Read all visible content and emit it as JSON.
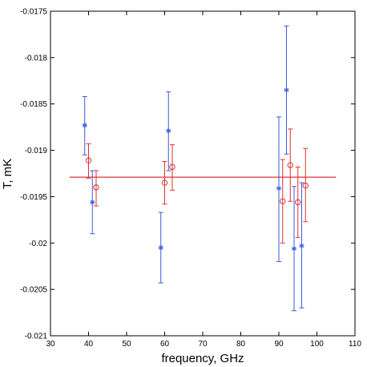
{
  "chart_data": {
    "type": "scatter",
    "title": "",
    "xlabel": "frequency, GHz",
    "ylabel": "T, mK",
    "xlim": [
      30,
      110
    ],
    "ylim": [
      -0.021,
      -0.0175
    ],
    "xticks": [
      30,
      40,
      50,
      60,
      70,
      80,
      90,
      100,
      110
    ],
    "yticks": [
      -0.021,
      -0.0205,
      -0.02,
      -0.0195,
      -0.019,
      -0.0185,
      -0.018,
      -0.0175
    ],
    "xtick_labels": [
      "30",
      "40",
      "50",
      "60",
      "70",
      "80",
      "90",
      "100",
      "110"
    ],
    "ytick_labels": [
      "-0.021",
      "-0.0205",
      "-0.02",
      "-0.0195",
      "-0.019",
      "-0.0185",
      "-0.018",
      "-0.0175"
    ],
    "grid": false,
    "legend": "none",
    "series": [
      {
        "marker": "asterisk",
        "color": "#3b5bdb",
        "points": [
          {
            "x": 39,
            "y": -0.01873,
            "lo": -0.01905,
            "hi": -0.01842
          },
          {
            "x": 41,
            "y": -0.01956,
            "lo": -0.0199,
            "hi": -0.01922
          },
          {
            "x": 59,
            "y": -0.02005,
            "lo": -0.02043,
            "hi": -0.01967
          },
          {
            "x": 61,
            "y": -0.01879,
            "lo": -0.01922,
            "hi": -0.01837
          },
          {
            "x": 90,
            "y": -0.01941,
            "lo": -0.0202,
            "hi": -0.01864
          },
          {
            "x": 92,
            "y": -0.01835,
            "lo": -0.01904,
            "hi": -0.01766
          },
          {
            "x": 94,
            "y": -0.02006,
            "lo": -0.02073,
            "hi": -0.01939
          },
          {
            "x": 96,
            "y": -0.02003,
            "lo": -0.0207,
            "hi": -0.01935
          }
        ]
      },
      {
        "marker": "circle",
        "color": "#e03131",
        "points": [
          {
            "x": 40,
            "y": -0.01911,
            "lo": -0.0193,
            "hi": -0.01893
          },
          {
            "x": 42,
            "y": -0.0194,
            "lo": -0.0196,
            "hi": -0.01922
          },
          {
            "x": 60,
            "y": -0.01935,
            "lo": -0.01958,
            "hi": -0.01912
          },
          {
            "x": 62,
            "y": -0.01918,
            "lo": -0.01943,
            "hi": -0.01894
          },
          {
            "x": 91,
            "y": -0.01955,
            "lo": -0.02,
            "hi": -0.0191
          },
          {
            "x": 93,
            "y": -0.01916,
            "lo": -0.01955,
            "hi": -0.01877
          },
          {
            "x": 95,
            "y": -0.01956,
            "lo": -0.01994,
            "hi": -0.01918
          },
          {
            "x": 97,
            "y": -0.01938,
            "lo": -0.01977,
            "hi": -0.01898
          }
        ]
      }
    ],
    "fit_line": {
      "color": "#e03131",
      "x": [
        35,
        105
      ],
      "y": -0.01929
    }
  }
}
